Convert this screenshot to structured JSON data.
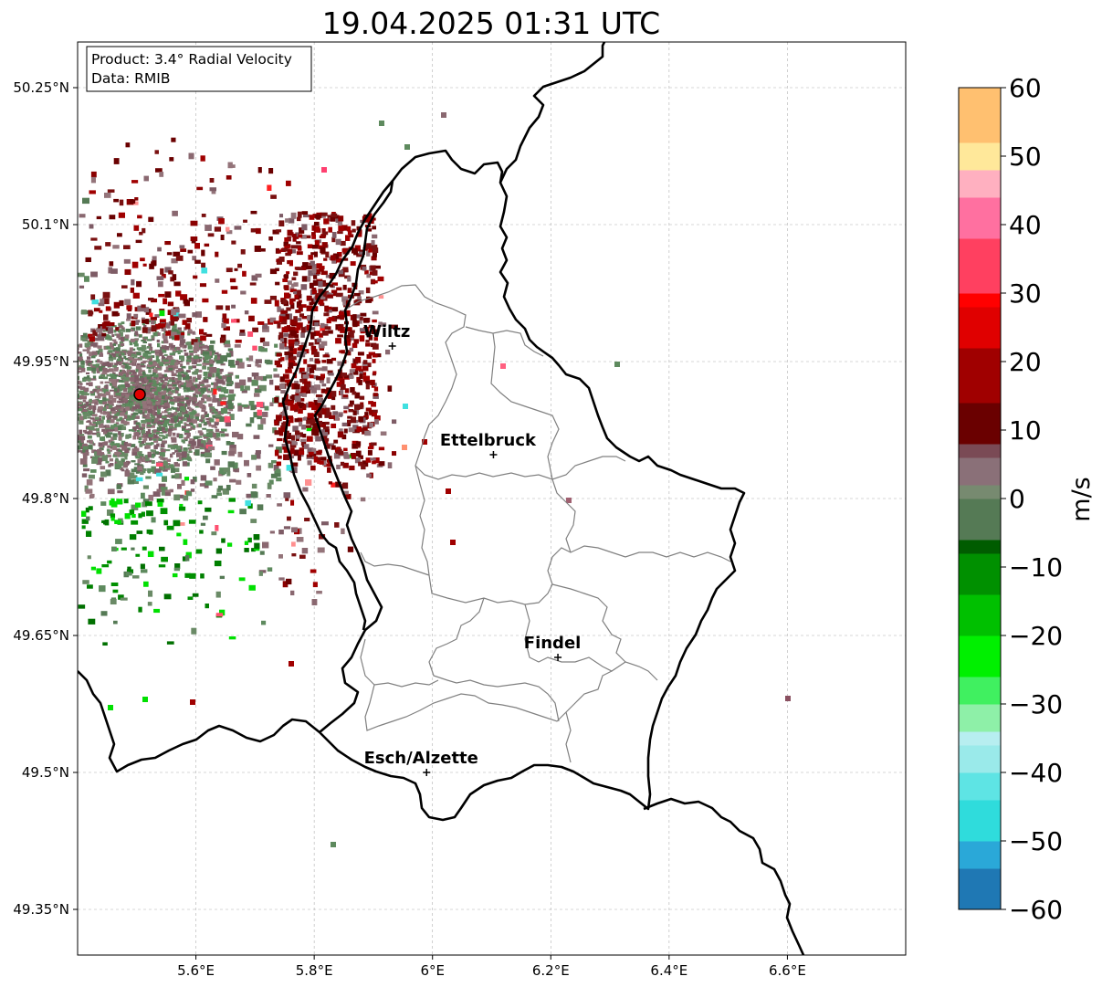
{
  "title": "19.04.2025 01:31 UTC",
  "info_box": {
    "product_line": "Product: 3.4° Radial Velocity",
    "data_line": "Data: RMIB"
  },
  "map": {
    "lon_min": 5.4,
    "lon_max": 6.8,
    "lat_min": 49.3,
    "lat_max": 50.3,
    "lon_ticks": [
      {
        "value": 5.6,
        "label": "5.6°E"
      },
      {
        "value": 5.8,
        "label": "5.8°E"
      },
      {
        "value": 6.0,
        "label": "6°E"
      },
      {
        "value": 6.2,
        "label": "6.2°E"
      },
      {
        "value": 6.4,
        "label": "6.4°E"
      },
      {
        "value": 6.6,
        "label": "6.6°E"
      }
    ],
    "lat_ticks": [
      {
        "value": 49.35,
        "label": "49.35°N"
      },
      {
        "value": 49.5,
        "label": "49.5°N"
      },
      {
        "value": 49.65,
        "label": "49.65°N"
      },
      {
        "value": 49.8,
        "label": "49.8°N"
      },
      {
        "value": 49.95,
        "label": "49.95°N"
      },
      {
        "value": 50.1,
        "label": "50.1°N"
      },
      {
        "value": 50.25,
        "label": "50.25°N"
      }
    ],
    "radar_site": {
      "lon": 5.505,
      "lat": 49.914
    },
    "cities": [
      {
        "name": "Wiltz",
        "lon": 5.932,
        "lat": 49.967
      },
      {
        "name": "Ettelbruck",
        "lon": 6.103,
        "lat": 49.848
      },
      {
        "name": "Findel",
        "lon": 6.212,
        "lat": 49.626
      },
      {
        "name": "Esch/Alzette",
        "lon": 5.99,
        "lat": 49.5
      }
    ]
  },
  "colorbar": {
    "label": "m/s",
    "min": -60,
    "max": 60,
    "ticks": [
      {
        "value": 60,
        "label": "60"
      },
      {
        "value": 50,
        "label": "50"
      },
      {
        "value": 40,
        "label": "40"
      },
      {
        "value": 30,
        "label": "30"
      },
      {
        "value": 20,
        "label": "20"
      },
      {
        "value": 10,
        "label": "10"
      },
      {
        "value": 0,
        "label": "0"
      },
      {
        "value": -10,
        "label": "−10"
      },
      {
        "value": -20,
        "label": "−20"
      },
      {
        "value": -30,
        "label": "−30"
      },
      {
        "value": -40,
        "label": "−40"
      },
      {
        "value": -50,
        "label": "−50"
      },
      {
        "value": -60,
        "label": "−60"
      }
    ],
    "colors": {
      "far_negative": "#1f78b4",
      "cyan": "#2fdcdc",
      "light_cyan": "#b7eef0",
      "light_green": "#8ef0a8",
      "bright_green": "#00e000",
      "dark_green": "#005c00",
      "neutral_green": "#5e8a5e",
      "neutral_mauve": "#8a6870",
      "dark_red": "#6a0000",
      "red": "#ff0000",
      "pink": "#ff70c0",
      "light_yellow": "#ffe89a",
      "orange": "#ff9a50"
    }
  }
}
